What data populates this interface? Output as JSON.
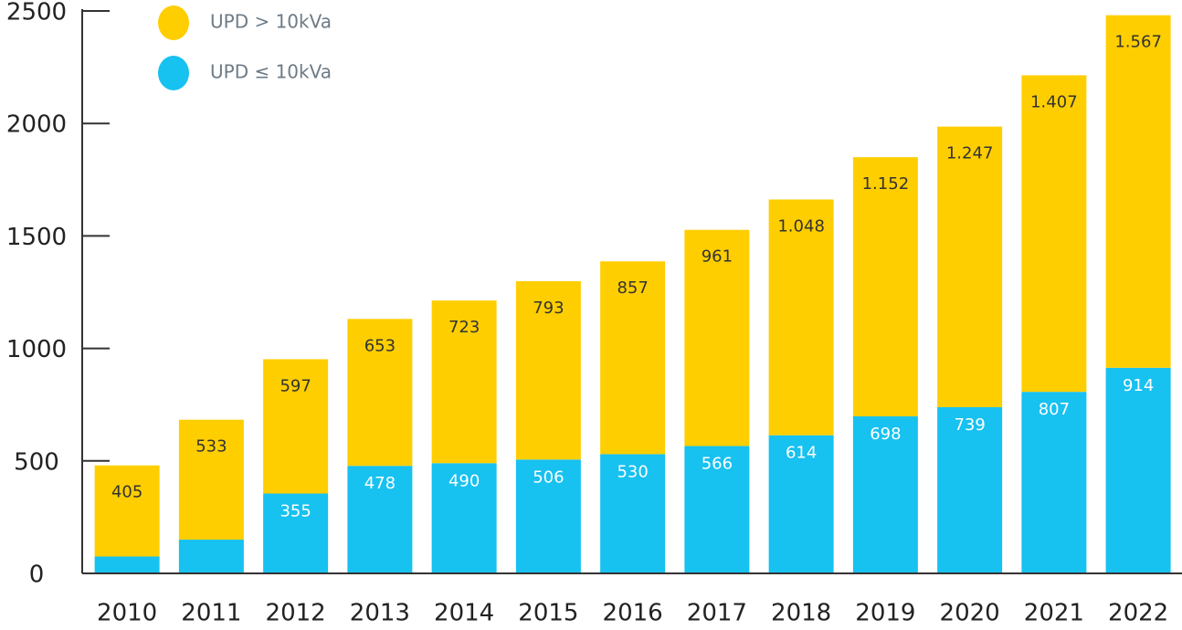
{
  "chart_data": {
    "type": "stacked_bar",
    "categories": [
      "2010",
      "2011",
      "2012",
      "2013",
      "2014",
      "2015",
      "2016",
      "2017",
      "2018",
      "2019",
      "2020",
      "2021",
      "2022"
    ],
    "series": [
      {
        "name": "UPD ≤ 10kVa",
        "color": "#17c1f0",
        "values": [
          75,
          150,
          355,
          478,
          490,
          506,
          530,
          566,
          614,
          698,
          739,
          807,
          914
        ],
        "value_labels": [
          null,
          null,
          "355",
          "478",
          "490",
          "506",
          "530",
          "566",
          "614",
          "698",
          "739",
          "807",
          "914"
        ]
      },
      {
        "name": "UPD > 10kVa",
        "color": "#ffce00",
        "values": [
          405,
          533,
          597,
          653,
          723,
          793,
          857,
          961,
          1048,
          1152,
          1247,
          1407,
          1567
        ],
        "value_labels": [
          "405",
          "533",
          "597",
          "653",
          "723",
          "793",
          "857",
          "961",
          "1.048",
          "1.152",
          "1.247",
          "1.407",
          "1.567"
        ]
      }
    ],
    "ylim": [
      0,
      2500
    ],
    "yticks": [
      0,
      500,
      1000,
      1500,
      2000,
      2500
    ],
    "legend": "top-left"
  }
}
